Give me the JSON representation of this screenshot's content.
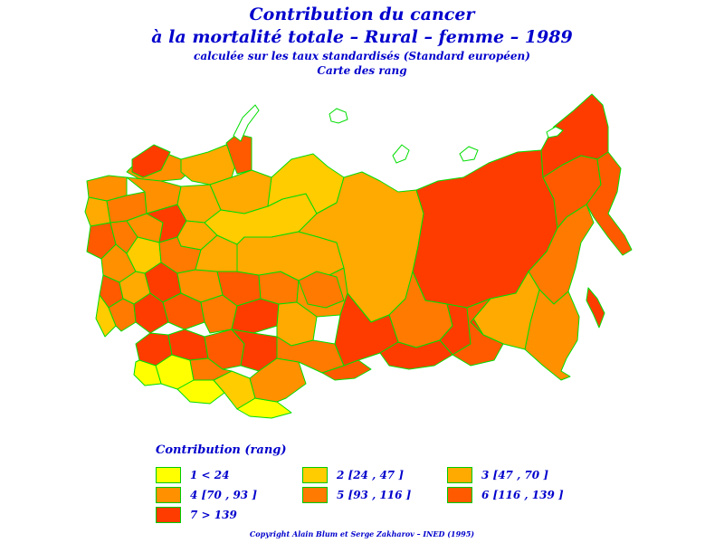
{
  "title": {
    "line1": "Contribution du cancer",
    "line2": "à la mortalité totale  –  Rural  –  femme  –  1989",
    "line3": "calculée sur les taux standardisés (Standard européen)",
    "line4": "Carte des rang"
  },
  "legend": {
    "title": "Contribution  (rang)",
    "items": [
      {
        "label": "1  <  24",
        "color": "#ffff00"
      },
      {
        "label": "2 [24 ,  47 ]",
        "color": "#ffcc00"
      },
      {
        "label": "3 [47 ,  70 ]",
        "color": "#ffaa00"
      },
      {
        "label": "4 [70 ,  93 ]",
        "color": "#ff9000"
      },
      {
        "label": "5 [93 ,  116 ]",
        "color": "#ff7a00"
      },
      {
        "label": "6 [116 ,  139 ]",
        "color": "#ff5a00"
      },
      {
        "label": "7  >  139",
        "color": "#ff3c00"
      }
    ]
  },
  "colors": {
    "border": "#00dd00",
    "text": "#0000cc"
  },
  "copyright": "Copyright  Alain  Blum  et  Serge  Zakharov  –  INED (1995)"
}
